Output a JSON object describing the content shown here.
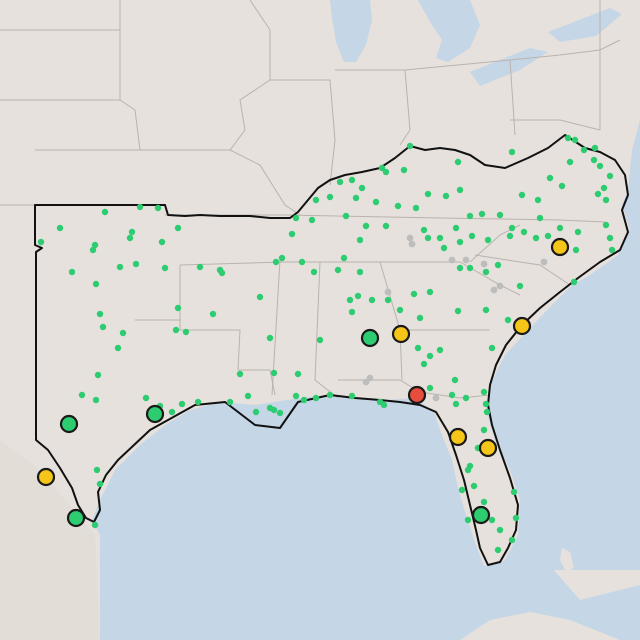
{
  "map": {
    "basemap_style": "light-gray-canvas",
    "colors": {
      "land": "#e6e1dc",
      "water": "#c5d6e6",
      "state_border": "#b9b3ae",
      "region_outline": "#111111",
      "small_dot_green": "#2ecc71",
      "small_dot_gray": "#bdbdbd",
      "marker_green": "#2ecc71",
      "marker_yellow": "#f5c518",
      "marker_red": "#e74c3c",
      "marker_stroke": "#1a1a1a"
    },
    "layers": {
      "small_points": {
        "shape": "dot",
        "count_visible": "many",
        "colors": [
          "green",
          "gray"
        ]
      },
      "large_markers": [
        {
          "id": "m1",
          "status": "green"
        },
        {
          "id": "m2",
          "status": "green"
        },
        {
          "id": "m3",
          "status": "yellow"
        },
        {
          "id": "m4",
          "status": "green"
        },
        {
          "id": "m5",
          "status": "green"
        },
        {
          "id": "m6",
          "status": "yellow"
        },
        {
          "id": "m7",
          "status": "yellow"
        },
        {
          "id": "m8",
          "status": "yellow"
        },
        {
          "id": "m9",
          "status": "red"
        },
        {
          "id": "m10",
          "status": "yellow"
        },
        {
          "id": "m11",
          "status": "yellow"
        },
        {
          "id": "m12",
          "status": "green"
        },
        {
          "id": "m13",
          "status": "yellow"
        }
      ]
    }
  }
}
